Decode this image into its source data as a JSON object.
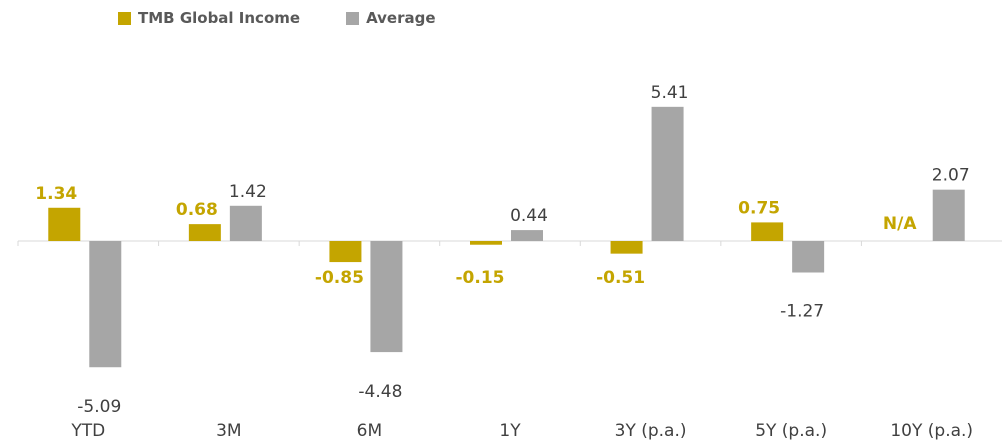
{
  "legend": {
    "items": [
      {
        "label": "TMB Global Income",
        "color": "#C4A500"
      },
      {
        "label": "Average",
        "color": "#A6A6A6"
      }
    ],
    "position": "top-left"
  },
  "chart_data": {
    "type": "bar",
    "categories": [
      "YTD",
      "3M",
      "6M",
      "1Y",
      "3Y (p.a.)",
      "5Y (p.a.)",
      "10Y (p.a.)"
    ],
    "series": [
      {
        "name": "TMB Global Income",
        "color": "#C4A500",
        "values": [
          1.34,
          0.68,
          -0.85,
          -0.15,
          -0.51,
          0.75,
          null
        ],
        "labels": [
          "1.34",
          "0.68",
          "-0.85",
          "-0.15",
          "-0.51",
          "0.75",
          "N/A"
        ]
      },
      {
        "name": "Average",
        "color": "#A6A6A6",
        "values": [
          -5.09,
          1.42,
          -4.48,
          0.44,
          5.41,
          -1.27,
          2.07
        ],
        "labels": [
          "-5.09",
          "1.42",
          "-4.48",
          "0.44",
          "5.41",
          "-1.27",
          "2.07"
        ]
      }
    ],
    "ylim": [
      -6.2,
      7.1
    ],
    "grid": false,
    "legend_position": "top-left"
  }
}
